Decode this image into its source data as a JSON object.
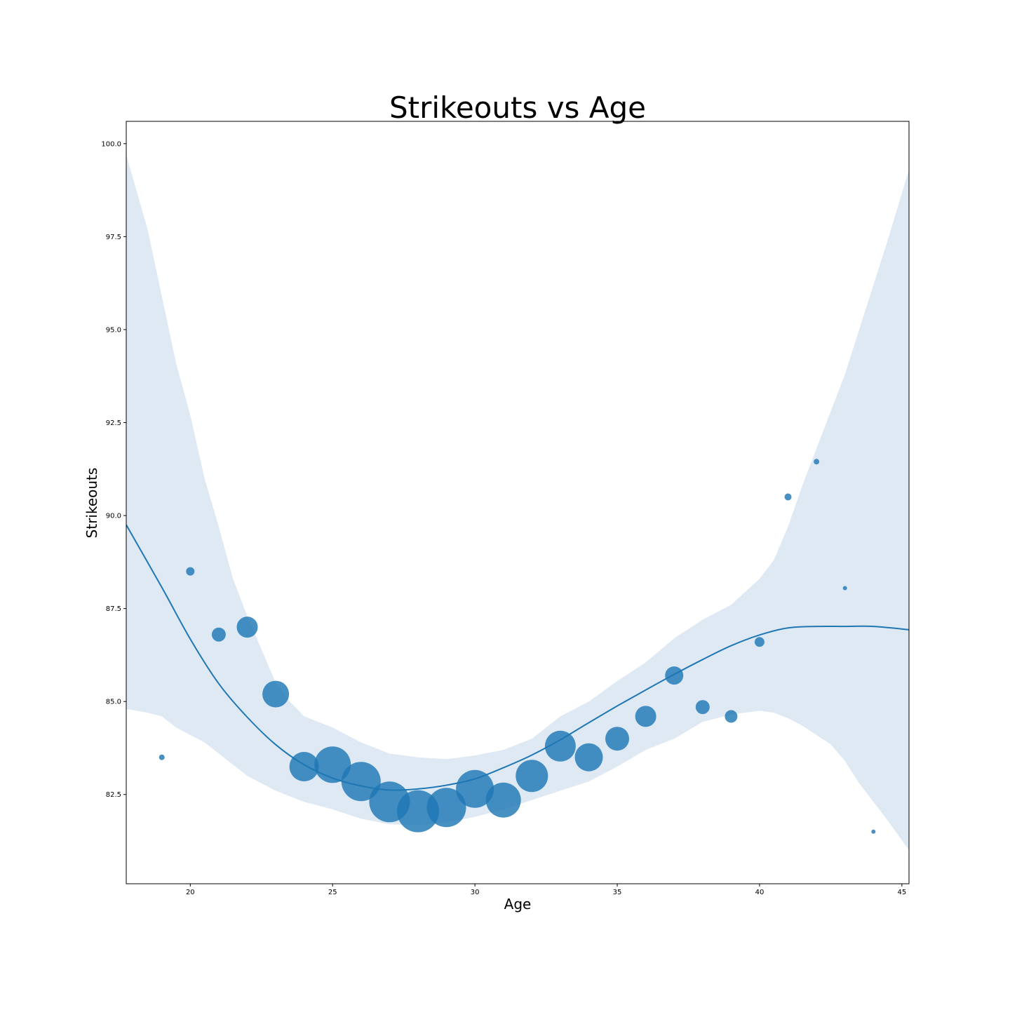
{
  "chart_data": {
    "type": "scatter",
    "title": "Strikeouts vs Age",
    "xlabel": "Age",
    "ylabel": "Strikeouts",
    "xlim": [
      17.75,
      45.25
    ],
    "ylim": [
      80.1,
      100.6
    ],
    "xticks": [
      20,
      25,
      30,
      35,
      40,
      45
    ],
    "xtick_labels": [
      "20",
      "25",
      "30",
      "35",
      "40",
      "45"
    ],
    "yticks": [
      82.5,
      85.0,
      87.5,
      90.0,
      92.5,
      95.0,
      97.5,
      100.0
    ],
    "ytick_labels": [
      "82.5",
      "85.0",
      "87.5",
      "90.0",
      "92.5",
      "95.0",
      "97.5",
      "100.0"
    ],
    "grid": false,
    "legend": "none",
    "colors": {
      "points": "#1f77b4",
      "line": "#1f77b4",
      "band": "#dee9f4"
    },
    "points": [
      {
        "x": 19,
        "y": 83.5,
        "size": 4
      },
      {
        "x": 20,
        "y": 88.5,
        "size": 6
      },
      {
        "x": 21,
        "y": 86.8,
        "size": 10
      },
      {
        "x": 22,
        "y": 87.0,
        "size": 15
      },
      {
        "x": 23,
        "y": 85.2,
        "size": 19
      },
      {
        "x": 24,
        "y": 83.25,
        "size": 21
      },
      {
        "x": 25,
        "y": 83.3,
        "size": 26
      },
      {
        "x": 26,
        "y": 82.85,
        "size": 28
      },
      {
        "x": 27,
        "y": 82.3,
        "size": 29
      },
      {
        "x": 28,
        "y": 82.05,
        "size": 30
      },
      {
        "x": 29,
        "y": 82.15,
        "size": 28
      },
      {
        "x": 30,
        "y": 82.65,
        "size": 27
      },
      {
        "x": 31,
        "y": 82.35,
        "size": 25
      },
      {
        "x": 32,
        "y": 83.0,
        "size": 23
      },
      {
        "x": 33,
        "y": 83.8,
        "size": 22
      },
      {
        "x": 34,
        "y": 83.5,
        "size": 20
      },
      {
        "x": 35,
        "y": 84.0,
        "size": 17
      },
      {
        "x": 36,
        "y": 84.6,
        "size": 15
      },
      {
        "x": 37,
        "y": 85.7,
        "size": 13
      },
      {
        "x": 38,
        "y": 84.85,
        "size": 10
      },
      {
        "x": 39,
        "y": 84.6,
        "size": 9
      },
      {
        "x": 40,
        "y": 86.6,
        "size": 7
      },
      {
        "x": 41,
        "y": 90.5,
        "size": 5
      },
      {
        "x": 42,
        "y": 91.45,
        "size": 4
      },
      {
        "x": 43,
        "y": 88.05,
        "size": 3
      },
      {
        "x": 44,
        "y": 81.5,
        "size": 3
      }
    ],
    "regression": {
      "x": [
        17.75,
        19,
        20,
        21,
        22,
        23,
        24,
        25,
        26,
        27,
        28,
        29,
        30,
        31,
        32,
        33,
        34,
        35,
        36,
        37,
        38,
        39,
        40,
        41,
        42,
        43,
        44,
        45.25
      ],
      "y": [
        89.75,
        88.07,
        86.68,
        85.48,
        84.58,
        83.84,
        83.3,
        82.94,
        82.73,
        82.62,
        82.65,
        82.75,
        82.92,
        83.22,
        83.56,
        83.97,
        84.43,
        84.88,
        85.31,
        85.73,
        86.13,
        86.5,
        86.79,
        86.98,
        87.02,
        87.02,
        87.02,
        86.93
      ]
    },
    "confidence_band": {
      "x": [
        17.75,
        18.5,
        19,
        19.5,
        20,
        20.5,
        21,
        21.5,
        22,
        22.5,
        23,
        23.5,
        24,
        25,
        26,
        27,
        28,
        29,
        30,
        31,
        32,
        33,
        34,
        35,
        36,
        37,
        38,
        39,
        40,
        40.5,
        41,
        41.5,
        42,
        42.5,
        43,
        43.5,
        44,
        44.5,
        45.25
      ],
      "upper": [
        99.7,
        97.7,
        95.9,
        94.1,
        92.7,
        91.0,
        89.7,
        88.3,
        87.3,
        86.4,
        85.5,
        85.0,
        84.6,
        84.3,
        83.9,
        83.6,
        83.5,
        83.45,
        83.55,
        83.7,
        84.0,
        84.6,
        85.0,
        85.55,
        86.05,
        86.7,
        87.2,
        87.6,
        88.3,
        88.8,
        89.7,
        90.8,
        91.8,
        92.8,
        93.8,
        95.0,
        96.2,
        97.4,
        99.3
      ],
      "lower": [
        84.8,
        84.7,
        84.6,
        84.3,
        84.1,
        83.9,
        83.6,
        83.3,
        83.0,
        82.8,
        82.6,
        82.45,
        82.3,
        82.1,
        81.85,
        81.7,
        81.68,
        81.75,
        81.9,
        82.1,
        82.35,
        82.6,
        82.85,
        83.25,
        83.7,
        84.0,
        84.45,
        84.65,
        84.75,
        84.7,
        84.55,
        84.35,
        84.1,
        83.85,
        83.4,
        82.8,
        82.3,
        81.8,
        81.0
      ]
    }
  }
}
